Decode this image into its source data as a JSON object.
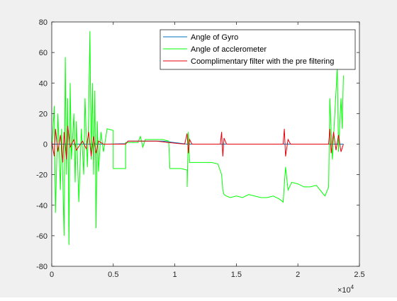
{
  "chart_data": {
    "type": "line",
    "title": "",
    "xlabel": "",
    "ylabel": "",
    "xlim": [
      0,
      2.5
    ],
    "ylim": [
      -80,
      80
    ],
    "x_exponent_label": "×10",
    "x_exponent_power": "4",
    "xticks": [
      0,
      0.5,
      1,
      1.5,
      2,
      2.5
    ],
    "xtick_labels": [
      "0",
      "0.5",
      "1",
      "1.5",
      "2",
      "2.5"
    ],
    "yticks": [
      -80,
      -60,
      -40,
      -20,
      0,
      20,
      40,
      60,
      80
    ],
    "ytick_labels": [
      "-80",
      "-60",
      "-40",
      "-20",
      "0",
      "20",
      "40",
      "60",
      "80"
    ],
    "legend_position": "top-right",
    "series": [
      {
        "name": "Angle of Gyro",
        "color": "#0072bd",
        "segments": [
          [
            0.0,
            0
          ],
          [
            0.45,
            0
          ],
          [
            0.6,
            0.3
          ],
          [
            0.62,
            2
          ],
          [
            0.9,
            2
          ],
          [
            1.1,
            0
          ],
          [
            1.4,
            0
          ],
          [
            1.9,
            0
          ],
          [
            2.3,
            0
          ],
          [
            2.37,
            0
          ]
        ]
      },
      {
        "name": "Angle of acclerometer",
        "color": "#00ff00",
        "segments": [
          [
            0.0,
            -5
          ],
          [
            0.02,
            25
          ],
          [
            0.03,
            -45
          ],
          [
            0.05,
            20
          ],
          [
            0.07,
            -30
          ],
          [
            0.08,
            10
          ],
          [
            0.1,
            -60
          ],
          [
            0.11,
            57
          ],
          [
            0.12,
            -20
          ],
          [
            0.13,
            30
          ],
          [
            0.14,
            -66
          ],
          [
            0.15,
            40
          ],
          [
            0.16,
            -10
          ],
          [
            0.18,
            20
          ],
          [
            0.19,
            -25
          ],
          [
            0.2,
            15
          ],
          [
            0.22,
            -38
          ],
          [
            0.24,
            10
          ],
          [
            0.26,
            -20
          ],
          [
            0.27,
            30
          ],
          [
            0.29,
            -15
          ],
          [
            0.3,
            20
          ],
          [
            0.31,
            74
          ],
          [
            0.32,
            -10
          ],
          [
            0.33,
            40
          ],
          [
            0.34,
            -20
          ],
          [
            0.35,
            35
          ],
          [
            0.36,
            -55
          ],
          [
            0.37,
            15
          ],
          [
            0.38,
            -18
          ],
          [
            0.4,
            8
          ],
          [
            0.42,
            -5
          ],
          [
            0.45,
            10
          ],
          [
            0.5,
            9
          ],
          [
            0.5,
            -16
          ],
          [
            0.6,
            -16
          ],
          [
            0.6,
            1
          ],
          [
            0.7,
            1
          ],
          [
            0.72,
            5
          ],
          [
            0.74,
            -2
          ],
          [
            0.76,
            3
          ],
          [
            0.8,
            3
          ],
          [
            0.9,
            3
          ],
          [
            0.95,
            2
          ],
          [
            0.96,
            -16
          ],
          [
            1.05,
            -16
          ],
          [
            1.1,
            -17
          ],
          [
            1.1,
            -28
          ],
          [
            1.11,
            8
          ],
          [
            1.12,
            -12
          ],
          [
            1.15,
            -12
          ],
          [
            1.2,
            -12
          ],
          [
            1.3,
            -12
          ],
          [
            1.35,
            -13
          ],
          [
            1.38,
            -20
          ],
          [
            1.39,
            -30
          ],
          [
            1.4,
            -33
          ],
          [
            1.42,
            -34
          ],
          [
            1.45,
            -35
          ],
          [
            1.5,
            -34
          ],
          [
            1.55,
            -35
          ],
          [
            1.6,
            -33
          ],
          [
            1.7,
            -35
          ],
          [
            1.75,
            -35
          ],
          [
            1.8,
            -34
          ],
          [
            1.85,
            -36
          ],
          [
            1.88,
            -38
          ],
          [
            1.9,
            -15
          ],
          [
            1.92,
            -30
          ],
          [
            1.95,
            -25
          ],
          [
            2.0,
            -26
          ],
          [
            2.05,
            -28
          ],
          [
            2.1,
            -28
          ],
          [
            2.15,
            -27
          ],
          [
            2.2,
            -32
          ],
          [
            2.22,
            -34
          ],
          [
            2.25,
            -28
          ],
          [
            2.26,
            30
          ],
          [
            2.28,
            -10
          ],
          [
            2.3,
            20
          ],
          [
            2.32,
            50
          ],
          [
            2.33,
            -5
          ],
          [
            2.35,
            30
          ],
          [
            2.36,
            10
          ],
          [
            2.37,
            45
          ]
        ]
      },
      {
        "name": "Coomplimentary filter with the pre filtering",
        "color": "#e8000b",
        "segments": [
          [
            0.0,
            2
          ],
          [
            0.02,
            -8
          ],
          [
            0.03,
            10
          ],
          [
            0.05,
            -5
          ],
          [
            0.07,
            6
          ],
          [
            0.09,
            -12
          ],
          [
            0.1,
            8
          ],
          [
            0.12,
            -10
          ],
          [
            0.13,
            12
          ],
          [
            0.15,
            -2
          ],
          [
            0.18,
            3
          ],
          [
            0.2,
            -4
          ],
          [
            0.25,
            2
          ],
          [
            0.28,
            -3
          ],
          [
            0.3,
            8
          ],
          [
            0.32,
            -8
          ],
          [
            0.34,
            5
          ],
          [
            0.36,
            -6
          ],
          [
            0.38,
            2
          ],
          [
            0.42,
            0
          ],
          [
            0.5,
            0
          ],
          [
            0.6,
            0
          ],
          [
            0.62,
            2
          ],
          [
            0.75,
            2
          ],
          [
            0.85,
            2
          ],
          [
            0.95,
            1
          ],
          [
            1.08,
            0
          ],
          [
            1.1,
            7
          ],
          [
            1.11,
            -6
          ],
          [
            1.12,
            3
          ],
          [
            1.14,
            0
          ],
          [
            1.37,
            0
          ],
          [
            1.38,
            8
          ],
          [
            1.39,
            -8
          ],
          [
            1.4,
            4
          ],
          [
            1.42,
            0
          ],
          [
            1.88,
            0
          ],
          [
            1.89,
            10
          ],
          [
            1.9,
            -8
          ],
          [
            1.92,
            3
          ],
          [
            1.94,
            0
          ],
          [
            2.25,
            0
          ],
          [
            2.26,
            10
          ],
          [
            2.27,
            -6
          ],
          [
            2.29,
            8
          ],
          [
            2.31,
            -4
          ],
          [
            2.33,
            6
          ],
          [
            2.35,
            -5
          ],
          [
            2.37,
            0
          ]
        ]
      }
    ]
  }
}
